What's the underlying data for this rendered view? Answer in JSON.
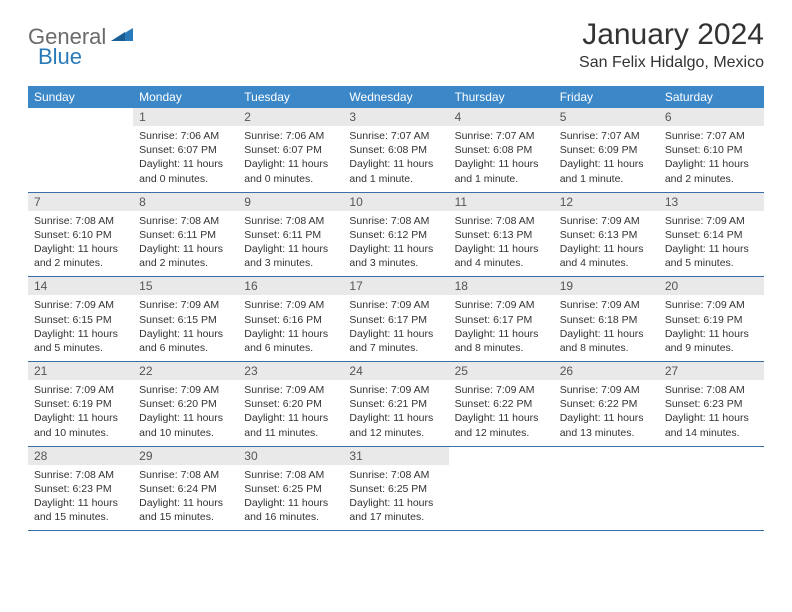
{
  "logo": {
    "part1": "General",
    "part2": "Blue"
  },
  "title": "January 2024",
  "location": "San Felix Hidalgo, Mexico",
  "colors": {
    "header_bg": "#3b87c8",
    "header_text": "#ffffff",
    "daynum_bg": "#e9e9e9",
    "week_border": "#3b6ea5",
    "logo_gray": "#6b6b6b",
    "logo_blue": "#2a7ab9"
  },
  "weekdays": [
    "Sunday",
    "Monday",
    "Tuesday",
    "Wednesday",
    "Thursday",
    "Friday",
    "Saturday"
  ],
  "weeks": [
    [
      {
        "n": "",
        "sr": "",
        "ss": "",
        "dl": ""
      },
      {
        "n": "1",
        "sr": "Sunrise: 7:06 AM",
        "ss": "Sunset: 6:07 PM",
        "dl": "Daylight: 11 hours and 0 minutes."
      },
      {
        "n": "2",
        "sr": "Sunrise: 7:06 AM",
        "ss": "Sunset: 6:07 PM",
        "dl": "Daylight: 11 hours and 0 minutes."
      },
      {
        "n": "3",
        "sr": "Sunrise: 7:07 AM",
        "ss": "Sunset: 6:08 PM",
        "dl": "Daylight: 11 hours and 1 minute."
      },
      {
        "n": "4",
        "sr": "Sunrise: 7:07 AM",
        "ss": "Sunset: 6:08 PM",
        "dl": "Daylight: 11 hours and 1 minute."
      },
      {
        "n": "5",
        "sr": "Sunrise: 7:07 AM",
        "ss": "Sunset: 6:09 PM",
        "dl": "Daylight: 11 hours and 1 minute."
      },
      {
        "n": "6",
        "sr": "Sunrise: 7:07 AM",
        "ss": "Sunset: 6:10 PM",
        "dl": "Daylight: 11 hours and 2 minutes."
      }
    ],
    [
      {
        "n": "7",
        "sr": "Sunrise: 7:08 AM",
        "ss": "Sunset: 6:10 PM",
        "dl": "Daylight: 11 hours and 2 minutes."
      },
      {
        "n": "8",
        "sr": "Sunrise: 7:08 AM",
        "ss": "Sunset: 6:11 PM",
        "dl": "Daylight: 11 hours and 2 minutes."
      },
      {
        "n": "9",
        "sr": "Sunrise: 7:08 AM",
        "ss": "Sunset: 6:11 PM",
        "dl": "Daylight: 11 hours and 3 minutes."
      },
      {
        "n": "10",
        "sr": "Sunrise: 7:08 AM",
        "ss": "Sunset: 6:12 PM",
        "dl": "Daylight: 11 hours and 3 minutes."
      },
      {
        "n": "11",
        "sr": "Sunrise: 7:08 AM",
        "ss": "Sunset: 6:13 PM",
        "dl": "Daylight: 11 hours and 4 minutes."
      },
      {
        "n": "12",
        "sr": "Sunrise: 7:09 AM",
        "ss": "Sunset: 6:13 PM",
        "dl": "Daylight: 11 hours and 4 minutes."
      },
      {
        "n": "13",
        "sr": "Sunrise: 7:09 AM",
        "ss": "Sunset: 6:14 PM",
        "dl": "Daylight: 11 hours and 5 minutes."
      }
    ],
    [
      {
        "n": "14",
        "sr": "Sunrise: 7:09 AM",
        "ss": "Sunset: 6:15 PM",
        "dl": "Daylight: 11 hours and 5 minutes."
      },
      {
        "n": "15",
        "sr": "Sunrise: 7:09 AM",
        "ss": "Sunset: 6:15 PM",
        "dl": "Daylight: 11 hours and 6 minutes."
      },
      {
        "n": "16",
        "sr": "Sunrise: 7:09 AM",
        "ss": "Sunset: 6:16 PM",
        "dl": "Daylight: 11 hours and 6 minutes."
      },
      {
        "n": "17",
        "sr": "Sunrise: 7:09 AM",
        "ss": "Sunset: 6:17 PM",
        "dl": "Daylight: 11 hours and 7 minutes."
      },
      {
        "n": "18",
        "sr": "Sunrise: 7:09 AM",
        "ss": "Sunset: 6:17 PM",
        "dl": "Daylight: 11 hours and 8 minutes."
      },
      {
        "n": "19",
        "sr": "Sunrise: 7:09 AM",
        "ss": "Sunset: 6:18 PM",
        "dl": "Daylight: 11 hours and 8 minutes."
      },
      {
        "n": "20",
        "sr": "Sunrise: 7:09 AM",
        "ss": "Sunset: 6:19 PM",
        "dl": "Daylight: 11 hours and 9 minutes."
      }
    ],
    [
      {
        "n": "21",
        "sr": "Sunrise: 7:09 AM",
        "ss": "Sunset: 6:19 PM",
        "dl": "Daylight: 11 hours and 10 minutes."
      },
      {
        "n": "22",
        "sr": "Sunrise: 7:09 AM",
        "ss": "Sunset: 6:20 PM",
        "dl": "Daylight: 11 hours and 10 minutes."
      },
      {
        "n": "23",
        "sr": "Sunrise: 7:09 AM",
        "ss": "Sunset: 6:20 PM",
        "dl": "Daylight: 11 hours and 11 minutes."
      },
      {
        "n": "24",
        "sr": "Sunrise: 7:09 AM",
        "ss": "Sunset: 6:21 PM",
        "dl": "Daylight: 11 hours and 12 minutes."
      },
      {
        "n": "25",
        "sr": "Sunrise: 7:09 AM",
        "ss": "Sunset: 6:22 PM",
        "dl": "Daylight: 11 hours and 12 minutes."
      },
      {
        "n": "26",
        "sr": "Sunrise: 7:09 AM",
        "ss": "Sunset: 6:22 PM",
        "dl": "Daylight: 11 hours and 13 minutes."
      },
      {
        "n": "27",
        "sr": "Sunrise: 7:08 AM",
        "ss": "Sunset: 6:23 PM",
        "dl": "Daylight: 11 hours and 14 minutes."
      }
    ],
    [
      {
        "n": "28",
        "sr": "Sunrise: 7:08 AM",
        "ss": "Sunset: 6:23 PM",
        "dl": "Daylight: 11 hours and 15 minutes."
      },
      {
        "n": "29",
        "sr": "Sunrise: 7:08 AM",
        "ss": "Sunset: 6:24 PM",
        "dl": "Daylight: 11 hours and 15 minutes."
      },
      {
        "n": "30",
        "sr": "Sunrise: 7:08 AM",
        "ss": "Sunset: 6:25 PM",
        "dl": "Daylight: 11 hours and 16 minutes."
      },
      {
        "n": "31",
        "sr": "Sunrise: 7:08 AM",
        "ss": "Sunset: 6:25 PM",
        "dl": "Daylight: 11 hours and 17 minutes."
      },
      {
        "n": "",
        "sr": "",
        "ss": "",
        "dl": ""
      },
      {
        "n": "",
        "sr": "",
        "ss": "",
        "dl": ""
      },
      {
        "n": "",
        "sr": "",
        "ss": "",
        "dl": ""
      }
    ]
  ]
}
